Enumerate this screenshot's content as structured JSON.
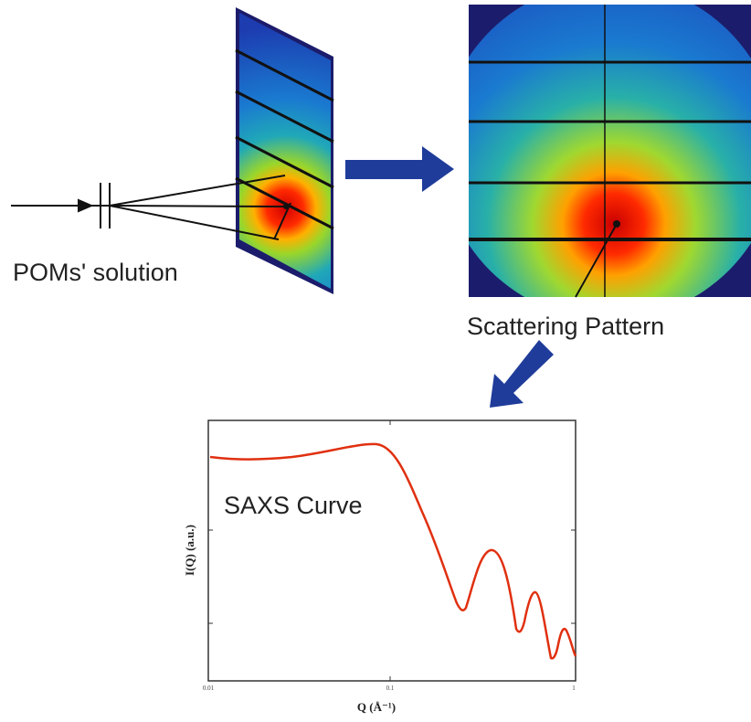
{
  "labels": {
    "solution": "POMs' solution",
    "pattern": "Scattering Pattern",
    "curve": "SAXS Curve"
  },
  "plot": {
    "y_label": "I(Q) (a.u.)",
    "x_label": "Q (Å⁻¹)",
    "x_ticks": [
      "0.01",
      "0.1",
      "1"
    ]
  }
}
